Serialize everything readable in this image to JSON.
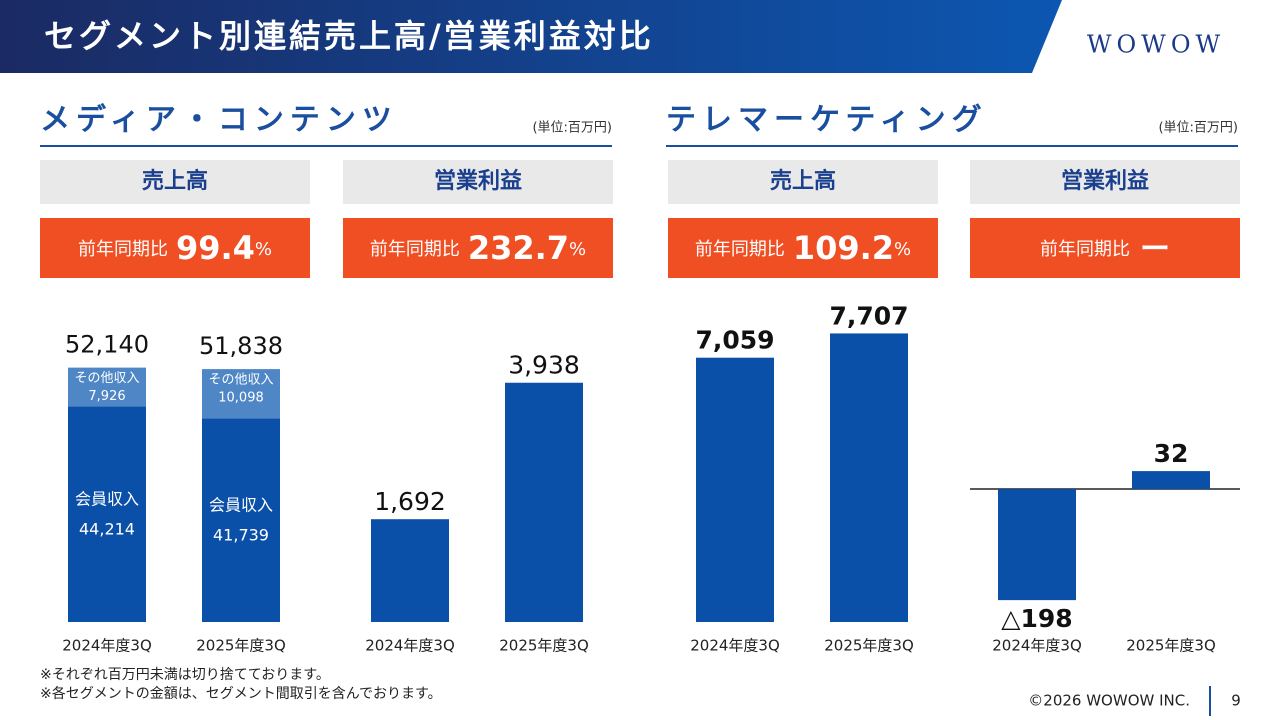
{
  "header": {
    "title": "セグメント別連結売上高/営業利益対比",
    "logo": "WOWOW"
  },
  "sections": [
    {
      "title": "メディア・コンテンツ",
      "unit": "(単位:百万円)"
    },
    {
      "title": "テレマーケティング",
      "unit": "(単位:百万円)"
    }
  ],
  "chart_data": [
    {
      "type": "stacked-bar",
      "title": "売上高",
      "yoy_label": "前年同期比",
      "yoy": 99.4,
      "yoy_unit": "%",
      "categories": [
        "2024年度3Q",
        "2025年度3Q"
      ],
      "series": [
        {
          "name": "会員収入",
          "color": "#0b50a8",
          "values": [
            44214,
            41739
          ],
          "value_labels": [
            "44,214",
            "41,739"
          ]
        },
        {
          "name": "その他収入",
          "color": "#4f86c6",
          "values": [
            7926,
            10098
          ],
          "value_labels": [
            "7,926",
            "10,098"
          ]
        }
      ],
      "totals": [
        52140,
        51838
      ],
      "total_labels": [
        "52,140",
        "51,838"
      ],
      "ylim": [
        0,
        66000
      ]
    },
    {
      "type": "bar",
      "title": "営業利益",
      "yoy_label": "前年同期比",
      "yoy": 232.7,
      "yoy_unit": "%",
      "categories": [
        "2024年度3Q",
        "2025年度3Q"
      ],
      "values": [
        1692,
        3938
      ],
      "value_labels": [
        "1,692",
        "3,938"
      ],
      "color": "#0b50a8",
      "ylim": [
        0,
        5300
      ]
    },
    {
      "type": "bar",
      "title": "売上高",
      "yoy_label": "前年同期比",
      "yoy": 109.2,
      "yoy_unit": "%",
      "categories": [
        "2024年度3Q",
        "2025年度3Q"
      ],
      "values": [
        7059,
        7707
      ],
      "value_labels": [
        "7,059",
        "7,707"
      ],
      "color": "#0b50a8",
      "ylim": [
        0,
        8600
      ]
    },
    {
      "type": "bar",
      "title": "営業利益",
      "yoy_label": "前年同期比",
      "yoy_text": "ー",
      "categories": [
        "2024年度3Q",
        "2025年度3Q"
      ],
      "values": [
        -198,
        32
      ],
      "value_labels": [
        "△198",
        "32"
      ],
      "color": "#0b50a8",
      "ylim": [
        -237,
        337
      ]
    }
  ],
  "notes": [
    "※それぞれ百万円未満は切り捨てております。",
    "※各セグメントの金額は、セグメント間取引を含んでおります。"
  ],
  "footer": {
    "copyright": "©2026 WOWOW INC.",
    "page": "9"
  }
}
